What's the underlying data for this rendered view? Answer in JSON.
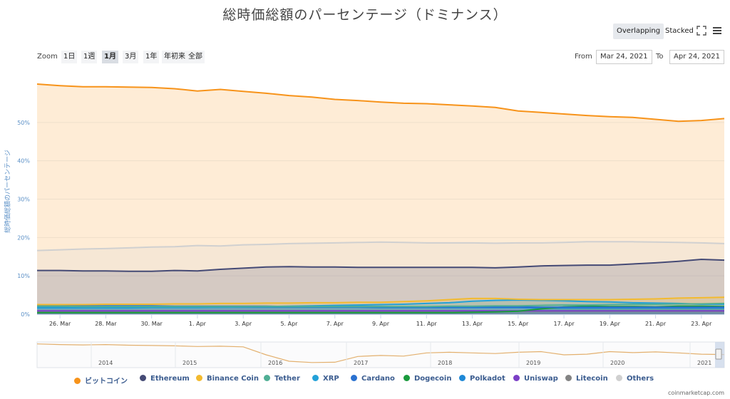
{
  "title": "総時価総額のパーセンテージ（ドミナンス）",
  "view_modes": [
    {
      "label": "Overlapping",
      "active": true
    },
    {
      "label": "Stacked",
      "active": false
    }
  ],
  "icons": {
    "fullscreen": "fullscreen-icon",
    "menu": "menu-icon"
  },
  "zoom": {
    "label": "Zoom",
    "options": [
      {
        "label": "1日",
        "active": false
      },
      {
        "label": "1週",
        "active": false
      },
      {
        "label": "1月",
        "active": true
      },
      {
        "label": "3月",
        "active": false
      },
      {
        "label": "1年",
        "active": false
      },
      {
        "label": "年初来",
        "active": false
      },
      {
        "label": "全部",
        "active": false
      }
    ]
  },
  "date_range": {
    "from_label": "From",
    "from": "Mar 24, 2021",
    "to_label": "To",
    "to": "Apr 24, 2021"
  },
  "credit": "coinmarketcap.com",
  "colors": {
    "bitcoin": "#f7931a",
    "ethereum": "#454a75",
    "binance": "#f3ba2f",
    "tether": "#50af95",
    "xrp": "#23a1d8",
    "cardano": "#2a71d0",
    "dogecoin": "#1a9a3c",
    "polkadot": "#1e88d6",
    "uniswap": "#7b3fc6",
    "litecoin": "#838383",
    "others": "#d0d0d0"
  },
  "chart_data": {
    "type": "area",
    "title": "総時価総額のパーセンテージ（ドミナンス）",
    "ylabel": "総時価総額のパーセンテージ",
    "ylim": [
      0,
      60
    ],
    "yticks": [
      "0%",
      "10%",
      "20%",
      "30%",
      "40%",
      "50%"
    ],
    "grid": true,
    "legend_position": "bottom",
    "x": [
      "25. Mar",
      "26. Mar",
      "27. Mar",
      "28. Mar",
      "29. Mar",
      "30. Mar",
      "31. Mar",
      "1. Apr",
      "2. Apr",
      "3. Apr",
      "4. Apr",
      "5. Apr",
      "6. Apr",
      "7. Apr",
      "8. Apr",
      "9. Apr",
      "10. Apr",
      "11. Apr",
      "12. Apr",
      "13. Apr",
      "14. Apr",
      "15. Apr",
      "16. Apr",
      "17. Apr",
      "18. Apr",
      "19. Apr",
      "20. Apr",
      "21. Apr",
      "22. Apr",
      "23. Apr",
      "24. Apr"
    ],
    "xticks": [
      "26. Mar",
      "28. Mar",
      "30. Mar",
      "1. Apr",
      "3. Apr",
      "5. Apr",
      "7. Apr",
      "9. Apr",
      "11. Apr",
      "13. Apr",
      "15. Apr",
      "17. Apr",
      "19. Apr",
      "21. Apr",
      "23. Apr"
    ],
    "series": [
      {
        "name": "ビットコイン",
        "color": "#f7931a",
        "values": [
          60.0,
          59.6,
          59.3,
          59.3,
          59.2,
          59.1,
          58.8,
          58.2,
          58.6,
          58.1,
          57.6,
          57.0,
          56.6,
          56.0,
          55.7,
          55.3,
          55.0,
          54.9,
          54.6,
          54.3,
          53.9,
          53.0,
          52.6,
          52.2,
          51.8,
          51.5,
          51.3,
          50.8,
          50.3,
          50.5,
          51.0
        ]
      },
      {
        "name": "Others",
        "color": "#d0d0d0",
        "values": [
          16.6,
          16.8,
          17.0,
          17.1,
          17.3,
          17.5,
          17.6,
          17.9,
          17.8,
          18.1,
          18.2,
          18.4,
          18.5,
          18.6,
          18.7,
          18.8,
          18.7,
          18.6,
          18.6,
          18.6,
          18.5,
          18.6,
          18.6,
          18.7,
          18.9,
          18.9,
          18.9,
          18.8,
          18.7,
          18.6,
          18.4
        ]
      },
      {
        "name": "Ethereum",
        "color": "#454a75",
        "values": [
          11.4,
          11.4,
          11.3,
          11.3,
          11.2,
          11.2,
          11.4,
          11.3,
          11.7,
          12.0,
          12.3,
          12.4,
          12.3,
          12.3,
          12.2,
          12.2,
          12.2,
          12.2,
          12.2,
          12.2,
          12.1,
          12.3,
          12.6,
          12.7,
          12.8,
          12.8,
          13.1,
          13.4,
          13.8,
          14.3,
          14.1
        ]
      },
      {
        "name": "Binance Coin",
        "color": "#f3ba2f",
        "values": [
          2.5,
          2.5,
          2.5,
          2.6,
          2.6,
          2.6,
          2.7,
          2.7,
          2.8,
          2.8,
          2.9,
          2.9,
          3.0,
          3.0,
          3.1,
          3.1,
          3.3,
          3.5,
          3.8,
          4.1,
          4.1,
          3.9,
          3.8,
          3.8,
          3.8,
          3.8,
          3.9,
          4.0,
          4.2,
          4.3,
          4.4
        ]
      },
      {
        "name": "Tether",
        "color": "#50af95",
        "values": [
          2.1,
          2.1,
          2.0,
          2.0,
          2.0,
          2.0,
          2.0,
          2.0,
          2.0,
          2.0,
          2.0,
          2.0,
          2.0,
          2.0,
          2.0,
          2.0,
          2.0,
          2.0,
          2.1,
          2.1,
          2.2,
          2.2,
          2.3,
          2.4,
          2.4,
          2.5,
          2.6,
          2.6,
          2.7,
          2.7,
          2.8
        ]
      },
      {
        "name": "XRP",
        "color": "#23a1d8",
        "values": [
          1.6,
          1.6,
          1.6,
          1.6,
          1.6,
          1.7,
          1.7,
          1.7,
          1.8,
          1.9,
          2.0,
          2.1,
          2.2,
          2.3,
          2.4,
          2.5,
          2.6,
          2.8,
          3.0,
          3.4,
          3.6,
          3.7,
          3.6,
          3.5,
          3.3,
          3.2,
          3.0,
          2.9,
          2.8,
          2.6,
          2.6
        ]
      },
      {
        "name": "Cardano",
        "color": "#2a71d0",
        "values": [
          2.3,
          2.3,
          2.2,
          2.2,
          2.2,
          2.2,
          2.1,
          2.1,
          2.1,
          2.1,
          2.1,
          2.0,
          2.0,
          2.0,
          2.0,
          2.0,
          1.9,
          1.9,
          1.9,
          1.9,
          1.9,
          1.9,
          1.8,
          1.8,
          1.8,
          1.8,
          1.8,
          1.8,
          1.8,
          1.8,
          1.8
        ]
      },
      {
        "name": "Dogecoin",
        "color": "#1a9a3c",
        "values": [
          0.4,
          0.4,
          0.4,
          0.4,
          0.4,
          0.4,
          0.4,
          0.4,
          0.4,
          0.4,
          0.4,
          0.4,
          0.4,
          0.4,
          0.4,
          0.4,
          0.4,
          0.4,
          0.4,
          0.5,
          0.6,
          0.8,
          1.4,
          1.9,
          2.1,
          2.0,
          2.0,
          1.9,
          2.1,
          2.1,
          2.0
        ]
      },
      {
        "name": "Polkadot",
        "color": "#1e88d6",
        "values": [
          1.9,
          1.9,
          1.9,
          1.9,
          1.8,
          1.8,
          1.8,
          1.8,
          1.8,
          1.8,
          1.8,
          1.8,
          1.8,
          1.8,
          1.8,
          1.7,
          1.7,
          1.7,
          1.7,
          1.7,
          1.7,
          1.7,
          1.6,
          1.6,
          1.6,
          1.6,
          1.6,
          1.6,
          1.6,
          1.6,
          1.6
        ]
      },
      {
        "name": "Uniswap",
        "color": "#7b3fc6",
        "values": [
          0.9,
          0.9,
          0.9,
          0.9,
          0.9,
          0.9,
          0.9,
          0.9,
          0.9,
          0.9,
          0.9,
          0.9,
          0.9,
          0.9,
          0.9,
          0.9,
          0.9,
          0.9,
          0.9,
          0.9,
          0.9,
          0.9,
          0.9,
          0.9,
          0.9,
          0.9,
          0.9,
          0.9,
          0.9,
          0.9,
          0.9
        ]
      },
      {
        "name": "Litecoin",
        "color": "#838383",
        "values": [
          0.8,
          0.8,
          0.8,
          0.8,
          0.8,
          0.8,
          0.8,
          0.8,
          0.8,
          0.8,
          0.8,
          0.8,
          0.8,
          0.8,
          0.8,
          0.8,
          0.8,
          0.8,
          0.8,
          0.8,
          0.8,
          0.8,
          0.8,
          0.8,
          0.8,
          0.8,
          0.8,
          0.8,
          0.8,
          0.8,
          0.8
        ]
      }
    ],
    "navigator": {
      "xticks": [
        "2014",
        "2015",
        "2016",
        "2017",
        "2018",
        "2019",
        "2020",
        "2021"
      ],
      "bitcoin_values": [
        94,
        92,
        91,
        92,
        90,
        89,
        88,
        86,
        87,
        85,
        60,
        40,
        36,
        37,
        55,
        58,
        56,
        66,
        68,
        66,
        64,
        68,
        70,
        60,
        62,
        70,
        67,
        69,
        66,
        62,
        61
      ]
    },
    "legend": [
      "ビットコイン",
      "Ethereum",
      "Binance Coin",
      "Tether",
      "XRP",
      "Cardano",
      "Dogecoin",
      "Polkadot",
      "Uniswap",
      "Litecoin",
      "Others"
    ]
  }
}
